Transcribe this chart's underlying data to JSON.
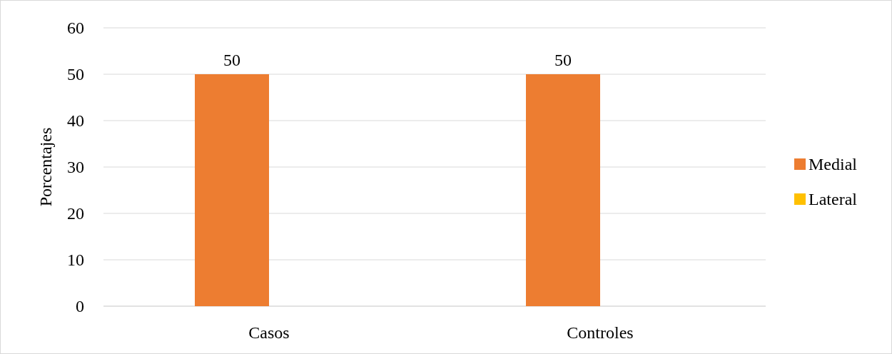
{
  "chart_data": {
    "type": "bar",
    "ylabel": "Porcentajes",
    "categories": [
      "Casos",
      "Controles"
    ],
    "series": [
      {
        "name": "Medial",
        "color": "#ed7d31",
        "values": [
          50,
          50
        ],
        "value_labels": [
          "50",
          "50"
        ]
      },
      {
        "name": "Lateral",
        "color": "#ffc000",
        "values": [
          0,
          0
        ],
        "value_labels": [
          null,
          null
        ]
      }
    ],
    "ylim": [
      0,
      60
    ],
    "yticks": [
      0,
      10,
      20,
      30,
      40,
      50,
      60
    ],
    "grid": "y",
    "legend": "right"
  }
}
